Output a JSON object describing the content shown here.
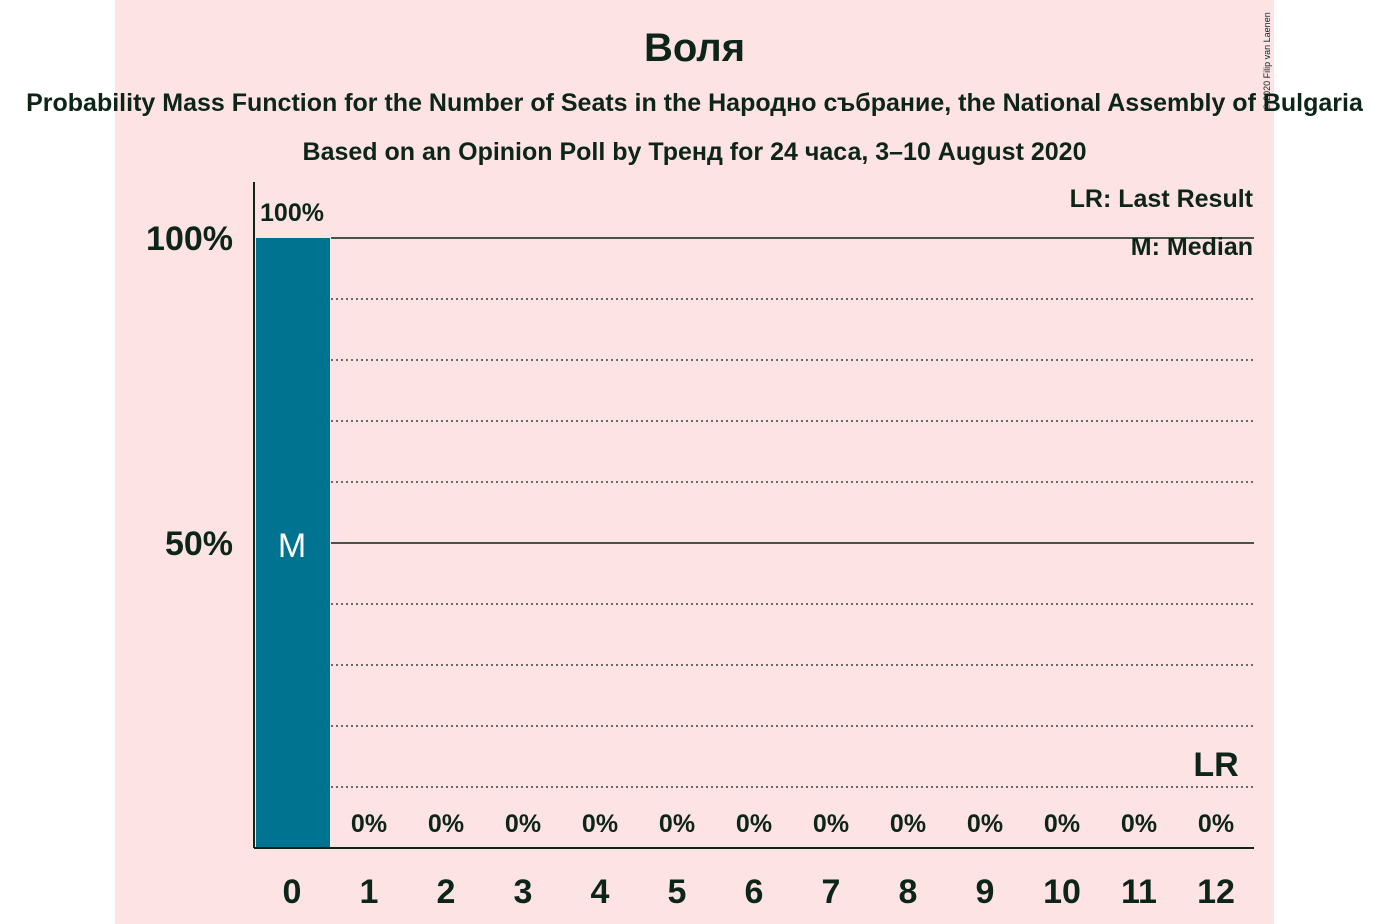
{
  "title": "Воля",
  "subtitle": "Probability Mass Function for the Number of Seats in the Народно събрание, the National Assembly of Bulgaria",
  "source": "Based on an Opinion Poll by Тренд for 24 часа, 3–10 August 2020",
  "copyright": "© 2020 Filip van Laenen",
  "legend": {
    "last_result": "LR: Last Result",
    "median": "M: Median"
  },
  "colors": {
    "background": "#fde3e3",
    "bar": "#007391",
    "text": "#0d2418"
  },
  "chart_data": {
    "type": "bar",
    "categories": [
      "0",
      "1",
      "2",
      "3",
      "4",
      "5",
      "6",
      "7",
      "8",
      "9",
      "10",
      "11",
      "12"
    ],
    "values": [
      100,
      0,
      0,
      0,
      0,
      0,
      0,
      0,
      0,
      0,
      0,
      0,
      0
    ],
    "value_labels": [
      "100%",
      "0%",
      "0%",
      "0%",
      "0%",
      "0%",
      "0%",
      "0%",
      "0%",
      "0%",
      "0%",
      "0%",
      "0%"
    ],
    "ylim": [
      0,
      100
    ],
    "y_ticks": [
      {
        "value": 50,
        "label": "50%"
      },
      {
        "value": 100,
        "label": "100%"
      }
    ],
    "minor_gridlines": [
      10,
      20,
      30,
      40,
      60,
      70,
      80,
      90
    ],
    "median_seat": "0",
    "median_label": "M",
    "last_result_seat": "12",
    "last_result_label": "LR"
  }
}
